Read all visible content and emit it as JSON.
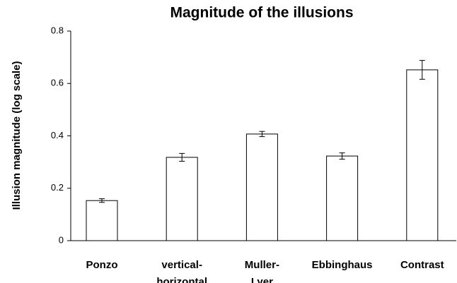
{
  "chart_data": {
    "type": "bar",
    "title": "Magnitude of the illusions",
    "ylabel": "Illusion magnitude (log scale)",
    "categories": [
      "Ponzo",
      "vertical-\nhorizontal",
      "Muller-\nLyer",
      "Ebbinghaus",
      "Contrast"
    ],
    "values": [
      0.153,
      0.318,
      0.407,
      0.323,
      0.652
    ],
    "errors": [
      0.007,
      0.015,
      0.01,
      0.012,
      0.036
    ],
    "color": "#ffffff",
    "ylim": [
      0,
      0.8
    ],
    "yticks": [
      0,
      0.2,
      0.4,
      0.6,
      0.8
    ],
    "grid": false
  }
}
